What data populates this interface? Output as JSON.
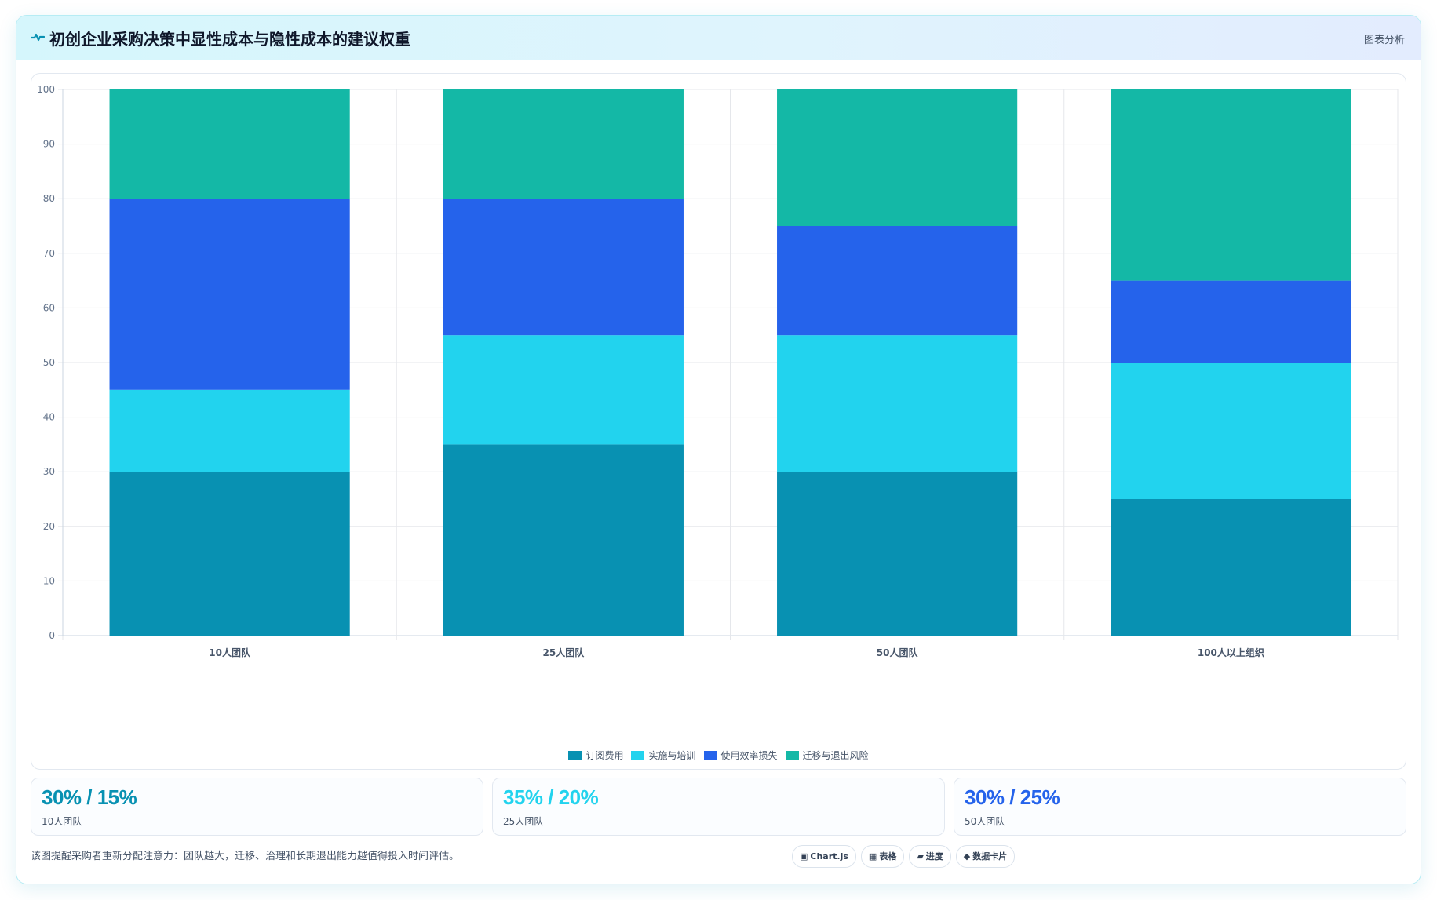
{
  "header": {
    "icon": "pulse-icon",
    "title": "初创企业采购决策中显性成本与隐性成本的建议权重",
    "tag": "图表分析"
  },
  "chart_data": {
    "type": "bar",
    "stacked": true,
    "categories": [
      "10人团队",
      "25人团队",
      "50人团队",
      "100人以上组织"
    ],
    "series": [
      {
        "name": "订阅费用",
        "color": "#0891b2",
        "values": [
          30,
          35,
          30,
          25
        ]
      },
      {
        "name": "实施与培训",
        "color": "#22d3ee",
        "values": [
          15,
          20,
          25,
          25
        ]
      },
      {
        "name": "使用效率损失",
        "color": "#2563eb",
        "values": [
          35,
          25,
          20,
          15
        ]
      },
      {
        "name": "迁移与退出风险",
        "color": "#14b8a6",
        "values": [
          20,
          20,
          25,
          35
        ]
      }
    ],
    "ylim": [
      0,
      100
    ],
    "yticks": [
      0,
      10,
      20,
      30,
      40,
      50,
      60,
      70,
      80,
      90,
      100
    ],
    "grid": true,
    "legend_position": "bottom"
  },
  "stats": [
    {
      "value": "30% / 15%",
      "label": "10人团队",
      "color": "#0891b2"
    },
    {
      "value": "35% / 20%",
      "label": "25人团队",
      "color": "#22d3ee"
    },
    {
      "value": "30% / 25%",
      "label": "50人团队",
      "color": "#2563eb"
    }
  ],
  "footer": {
    "note": "该图提醒采购者重新分配注意力：团队越大，迁移、治理和长期退出能力越值得投入时间评估。",
    "chips": [
      {
        "icon": "▣",
        "label": "Chart.js"
      },
      {
        "icon": "▦",
        "label": "表格"
      },
      {
        "icon": "▰",
        "label": "进度"
      },
      {
        "icon": "◆",
        "label": "数据卡片"
      }
    ]
  }
}
